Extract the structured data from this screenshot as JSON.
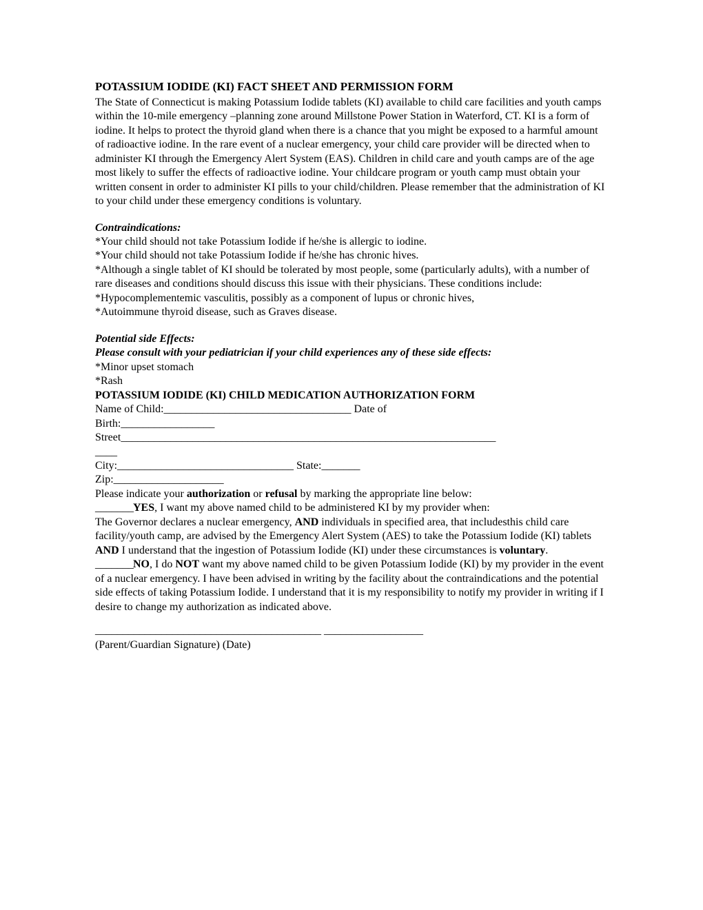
{
  "title": "POTASSIUM IODIDE (KI) FACT SHEET AND PERMISSION FORM",
  "intro": "The State of Connecticut is making Potassium Iodide tablets (KI) available to child care facilities and youth camps within the 10-mile emergency –planning zone around Millstone Power Station in Waterford, CT. KI is a form of iodine. It helps to protect the thyroid gland when there is a chance that you might be exposed to a harmful amount of radioactive iodine. In the rare event of a nuclear emergency, your child care provider will be directed when to administer KI through the Emergency Alert System (EAS). Children in child care and youth camps are of the age most likely to suffer the effects of radioactive iodine. Your childcare program or youth camp must obtain your written consent in order to administer KI pills to your child/children. Please remember that the administration of KI to your child under these emergency conditions is voluntary.",
  "contraindications_heading": "Contraindications:",
  "contraindications": {
    "c1": "*Your child should not take Potassium Iodide if he/she is allergic to iodine.",
    "c2": "*Your child should not take Potassium Iodide if he/she has chronic hives.",
    "c3": "*Although a single tablet of KI should be tolerated by most people, some (particularly adults), with a number of rare diseases and conditions should discuss this issue with their physicians. These conditions include:",
    "c4": "*Hypocomplementemic vasculitis, possibly as a component of lupus or chronic hives,",
    "c5": "*Autoimmune thyroid disease, such as Graves disease."
  },
  "side_effects_heading": "Potential side Effects:",
  "side_effects_sub": "Please consult with your pediatrician if your child experiences any of these side effects:",
  "side_effects": {
    "s1": "*Minor upset stomach",
    "s2": "*Rash"
  },
  "auth_title": "POTASSIUM IODIDE (KI) CHILD MEDICATION AUTHORIZATION FORM",
  "fields": {
    "name_label": "Name of Child:",
    "name_line": "__________________________________",
    "dob_label": "Date of",
    "birth_label": "Birth:",
    "birth_line": "_________________",
    "street_label": "Street",
    "street_line": "____________________________________________________________________",
    "street_line2": "____",
    "city_label": "City:",
    "city_line": "________________________________",
    "state_label": "State:",
    "state_line": "_______",
    "zip_label": "Zip:",
    "zip_line": "____________________"
  },
  "instruction_pre": "Please indicate your ",
  "instruction_auth": "authorization",
  "instruction_or": " or ",
  "instruction_refusal": "refusal",
  "instruction_post": " by marking the appropriate line below:",
  "yes": {
    "blank": "_______",
    "yes_label": "YES",
    "yes_text1": ", I want my above named child to be administered KI by my provider when:",
    "yes_text2a": "The Governor declares a nuclear emergency, ",
    "yes_text2b": "AND",
    "yes_text2c": " individuals in specified area, that includesthis child care facility/youth camp, are advised by the Emergency Alert System (AES) to take the Potassium Iodide (KI) tablets ",
    "yes_text2d": "AND",
    "yes_text2e": " I understand that the ingestion of Potassium Iodide (KI) under these circumstances is ",
    "yes_text2f": "voluntary",
    "yes_text2g": "."
  },
  "no": {
    "blank": "_______",
    "no_label": "NO",
    "no_text1": ", I do ",
    "no_label2": "NOT",
    "no_text2": " want my above named child to be given Potassium Iodide (KI) by my provider in the event of a nuclear emergency. I have been advised in writing by the facility about the contraindications and the potential side effects of taking Potassium Iodide. I understand that it is my responsibility to notify my provider in writing if I desire to change my authorization as indicated above."
  },
  "signature": {
    "line1": "_________________________________________",
    "line2": "__________________",
    "label": "(Parent/Guardian Signature) (Date)"
  }
}
